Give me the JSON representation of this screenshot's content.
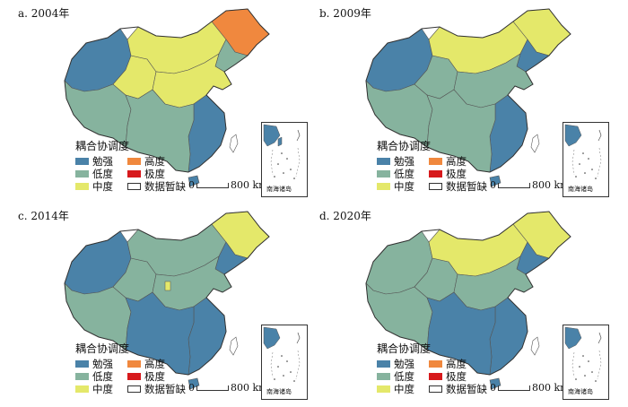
{
  "panels": [
    {
      "title": "a. 2004年",
      "key": "a"
    },
    {
      "title": "b. 2009年",
      "key": "b"
    },
    {
      "title": "c. 2014年",
      "key": "c"
    },
    {
      "title": "d. 2020年",
      "key": "d"
    }
  ],
  "legend": {
    "title": "耦合协调度",
    "items": [
      {
        "label": "勉强",
        "color": "#4a82a8"
      },
      {
        "label": "高度",
        "color": "#f0883e"
      },
      {
        "label": "低度",
        "color": "#86b39e"
      },
      {
        "label": "极度",
        "color": "#d7191c"
      },
      {
        "label": "中度",
        "color": "#e4e86a"
      },
      {
        "label": "数据暂缺",
        "color": "#ffffff"
      }
    ]
  },
  "scale": {
    "zero": "0",
    "distance": "800 km"
  },
  "inset": {
    "label": "南海诸岛"
  }
}
